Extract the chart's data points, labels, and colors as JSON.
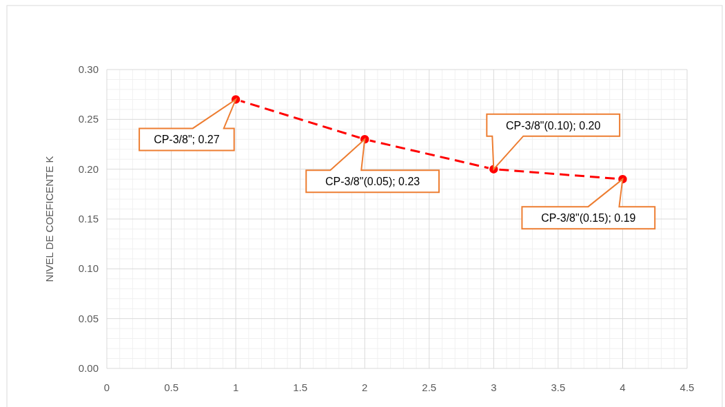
{
  "chart_data": {
    "type": "line",
    "ylabel": "NIVEL DE COEFICENTE K",
    "x": [
      1,
      2,
      3,
      4
    ],
    "series": [
      {
        "color": "#ff0000",
        "values": [
          0.27,
          0.23,
          0.2,
          0.19
        ],
        "value_labels": [
          "CP-3/8\"; 0.27",
          "CP-3/8\"(0.05); 0.23",
          "CP-3/8\"(0.10); 0.20",
          "CP-3/8\"(0.15); 0.19"
        ]
      }
    ],
    "xlim": [
      0,
      4.5
    ],
    "xticks": [
      0,
      0.5,
      1,
      1.5,
      2,
      2.5,
      3,
      3.5,
      4,
      4.5
    ],
    "ylim": [
      0,
      0.3
    ],
    "yticks": [
      {
        "value": 0,
        "label": "0.00"
      },
      {
        "value": 0.05,
        "label": "0.05"
      },
      {
        "value": 0.1,
        "label": "0.10"
      },
      {
        "value": 0.15,
        "label": "0.15"
      },
      {
        "value": 0.2,
        "label": "0.20"
      },
      {
        "value": 0.25,
        "label": "0.25"
      },
      {
        "value": 0.3,
        "label": "0.30"
      }
    ],
    "grid": true,
    "marker": "circle",
    "line_style": "dashed"
  }
}
